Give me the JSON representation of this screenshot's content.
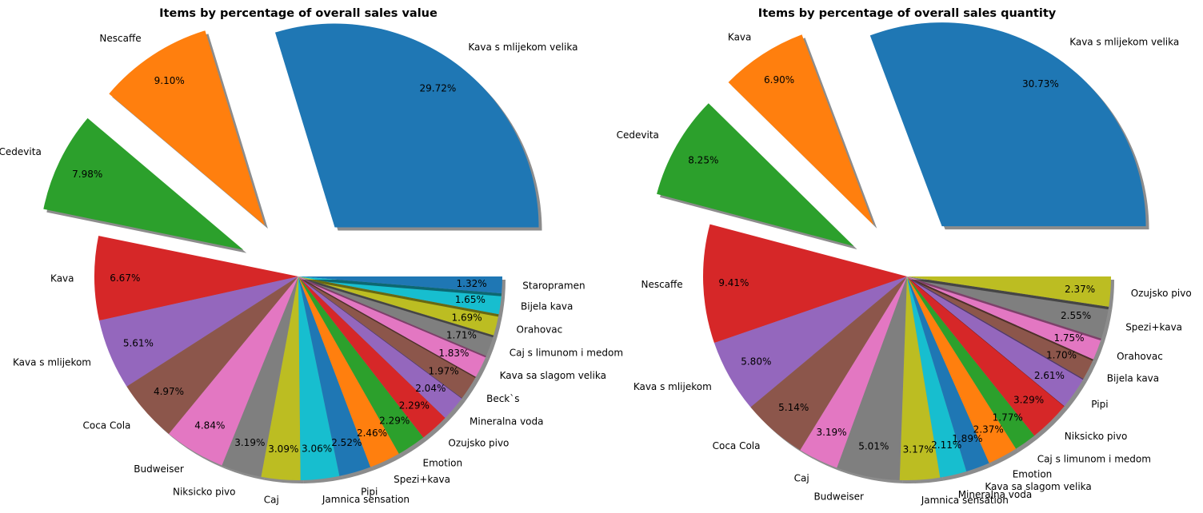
{
  "chart_data": [
    {
      "type": "pie",
      "title": "Items by percentage of overall sales value",
      "startangle_deg": 0,
      "direction": "counterclockwise",
      "shadow": true,
      "slices": [
        {
          "label": "Kava s mlijekom velika",
          "value": 29.72,
          "pct_label": "29.72%",
          "color": "#1f77b4",
          "explode": 0.3
        },
        {
          "label": "Nescaffe",
          "value": 9.1,
          "pct_label": "9.10%",
          "color": "#ff7f0e",
          "explode": 0.3
        },
        {
          "label": "Cedevita",
          "value": 7.98,
          "pct_label": "7.98%",
          "color": "#2ca02c",
          "explode": 0.3
        },
        {
          "label": "Kava",
          "value": 6.67,
          "pct_label": "6.67%",
          "color": "#d62728",
          "explode": 0
        },
        {
          "label": "Kava s mlijekom",
          "value": 5.61,
          "pct_label": "5.61%",
          "color": "#9467bd",
          "explode": 0
        },
        {
          "label": "Coca Cola",
          "value": 4.97,
          "pct_label": "4.97%",
          "color": "#8c564b",
          "explode": 0
        },
        {
          "label": "Budweiser",
          "value": 4.84,
          "pct_label": "4.84%",
          "color": "#e377c2",
          "explode": 0
        },
        {
          "label": "Niksicko pivo",
          "value": 3.19,
          "pct_label": "3.19%",
          "color": "#7f7f7f",
          "explode": 0
        },
        {
          "label": "Caj",
          "value": 3.09,
          "pct_label": "3.09%",
          "color": "#bcbd22",
          "explode": 0
        },
        {
          "label": "Jamnica sensation",
          "value": 3.06,
          "pct_label": "3.06%",
          "color": "#17becf",
          "explode": 0
        },
        {
          "label": "Pipi",
          "value": 2.52,
          "pct_label": "2.52%",
          "color": "#1f77b4",
          "explode": 0
        },
        {
          "label": "Spezi+kava",
          "value": 2.46,
          "pct_label": "2.46%",
          "color": "#ff7f0e",
          "explode": 0
        },
        {
          "label": "Emotion",
          "value": 2.29,
          "pct_label": "2.29%",
          "color": "#2ca02c",
          "explode": 0
        },
        {
          "label": "Ozujsko pivo",
          "value": 2.29,
          "pct_label": "2.29%",
          "color": "#d62728",
          "explode": 0
        },
        {
          "label": "Mineralna voda",
          "value": 2.04,
          "pct_label": "2.04%",
          "color": "#9467bd",
          "explode": 0
        },
        {
          "label": "Beck`s",
          "value": 1.97,
          "pct_label": "1.97%",
          "color": "#8c564b",
          "explode": 0
        },
        {
          "label": "Kava sa slagom velika",
          "value": 1.83,
          "pct_label": "1.83%",
          "color": "#e377c2",
          "explode": 0
        },
        {
          "label": "Caj s limunom i medom",
          "value": 1.71,
          "pct_label": "1.71%",
          "color": "#7f7f7f",
          "explode": 0
        },
        {
          "label": "Orahovac",
          "value": 1.69,
          "pct_label": "1.69%",
          "color": "#bcbd22",
          "explode": 0
        },
        {
          "label": "Bijela kava",
          "value": 1.65,
          "pct_label": "1.65%",
          "color": "#17becf",
          "explode": 0
        },
        {
          "label": "Staropramen",
          "value": 1.32,
          "pct_label": "1.32%",
          "color": "#1f77b4",
          "explode": 0
        }
      ]
    },
    {
      "type": "pie",
      "title": "Items by percentage of overall sales quantity",
      "startangle_deg": 0,
      "direction": "counterclockwise",
      "shadow": true,
      "slices": [
        {
          "label": "Kava s mlijekom velika",
          "value": 30.73,
          "pct_label": "30.73%",
          "color": "#1f77b4",
          "explode": 0.3
        },
        {
          "label": "Kava",
          "value": 6.9,
          "pct_label": "6.90%",
          "color": "#ff7f0e",
          "explode": 0.3
        },
        {
          "label": "Cedevita",
          "value": 8.25,
          "pct_label": "8.25%",
          "color": "#2ca02c",
          "explode": 0.3
        },
        {
          "label": "Nescaffe",
          "value": 9.41,
          "pct_label": "9.41%",
          "color": "#d62728",
          "explode": 0
        },
        {
          "label": "Kava s mlijekom",
          "value": 5.8,
          "pct_label": "5.80%",
          "color": "#9467bd",
          "explode": 0
        },
        {
          "label": "Coca Cola",
          "value": 5.14,
          "pct_label": "5.14%",
          "color": "#8c564b",
          "explode": 0
        },
        {
          "label": "Caj",
          "value": 3.19,
          "pct_label": "3.19%",
          "color": "#e377c2",
          "explode": 0
        },
        {
          "label": "Budweiser",
          "value": 5.01,
          "pct_label": "5.01%",
          "color": "#7f7f7f",
          "explode": 0
        },
        {
          "label": "Jamnica sensation",
          "value": 3.17,
          "pct_label": "3.17%",
          "color": "#bcbd22",
          "explode": 0
        },
        {
          "label": "Mineralna voda",
          "value": 2.11,
          "pct_label": "2.11%",
          "color": "#17becf",
          "explode": 0
        },
        {
          "label": "Kava sa slagom velika",
          "value": 1.89,
          "pct_label": "1.89%",
          "color": "#1f77b4",
          "explode": 0
        },
        {
          "label": "Emotion",
          "value": 2.37,
          "pct_label": "2.37%",
          "color": "#ff7f0e",
          "explode": 0
        },
        {
          "label": "Caj s limunom i medom",
          "value": 1.77,
          "pct_label": "1.77%",
          "color": "#2ca02c",
          "explode": 0
        },
        {
          "label": "Niksicko pivo",
          "value": 3.29,
          "pct_label": "3.29%",
          "color": "#d62728",
          "explode": 0
        },
        {
          "label": "Pipi",
          "value": 2.61,
          "pct_label": "2.61%",
          "color": "#9467bd",
          "explode": 0
        },
        {
          "label": "Bijela kava",
          "value": 1.7,
          "pct_label": "1.70%",
          "color": "#8c564b",
          "explode": 0
        },
        {
          "label": "Orahovac",
          "value": 1.75,
          "pct_label": "1.75%",
          "color": "#e377c2",
          "explode": 0
        },
        {
          "label": "Spezi+kava",
          "value": 2.55,
          "pct_label": "2.55%",
          "color": "#7f7f7f",
          "explode": 0
        },
        {
          "label": "Ozujsko pivo",
          "value": 2.37,
          "pct_label": "2.37%",
          "color": "#bcbd22",
          "explode": 0
        }
      ]
    }
  ]
}
